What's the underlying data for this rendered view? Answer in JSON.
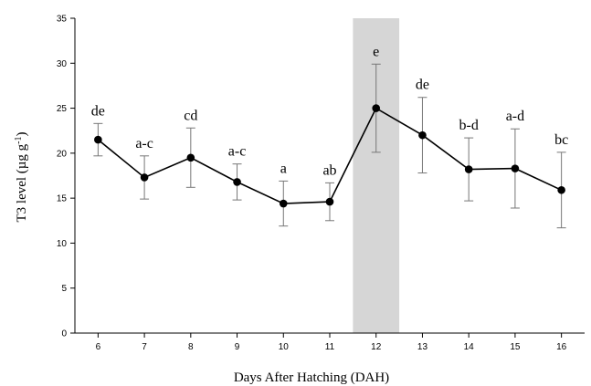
{
  "chart_data": {
    "type": "line",
    "xlabel": "Days After Hatching (DAH)",
    "ylabel_main": "T3 level (µg g",
    "ylabel_sup": "-1",
    "ylabel_close": ")",
    "ylim": [
      0,
      35
    ],
    "y_ticks": [
      0,
      5,
      10,
      15,
      20,
      25,
      30,
      35
    ],
    "x": [
      6,
      7,
      8,
      9,
      10,
      11,
      12,
      13,
      14,
      15,
      16
    ],
    "values": [
      21.5,
      17.3,
      19.5,
      16.8,
      14.4,
      14.6,
      25.0,
      22.0,
      18.2,
      18.3,
      15.9
    ],
    "error": [
      1.8,
      2.4,
      3.3,
      2.0,
      2.5,
      2.1,
      4.9,
      4.2,
      3.5,
      4.4,
      4.2
    ],
    "letters": [
      "de",
      "a-c",
      "cd",
      "a-c",
      "a",
      "ab",
      "e",
      "de",
      "b-d",
      "a-d",
      "bc"
    ],
    "highlight_x": 12,
    "colors": {
      "line": "#000000",
      "marker": "#000000",
      "error_bar": "#777777",
      "highlight": "#d6d6d6"
    }
  }
}
